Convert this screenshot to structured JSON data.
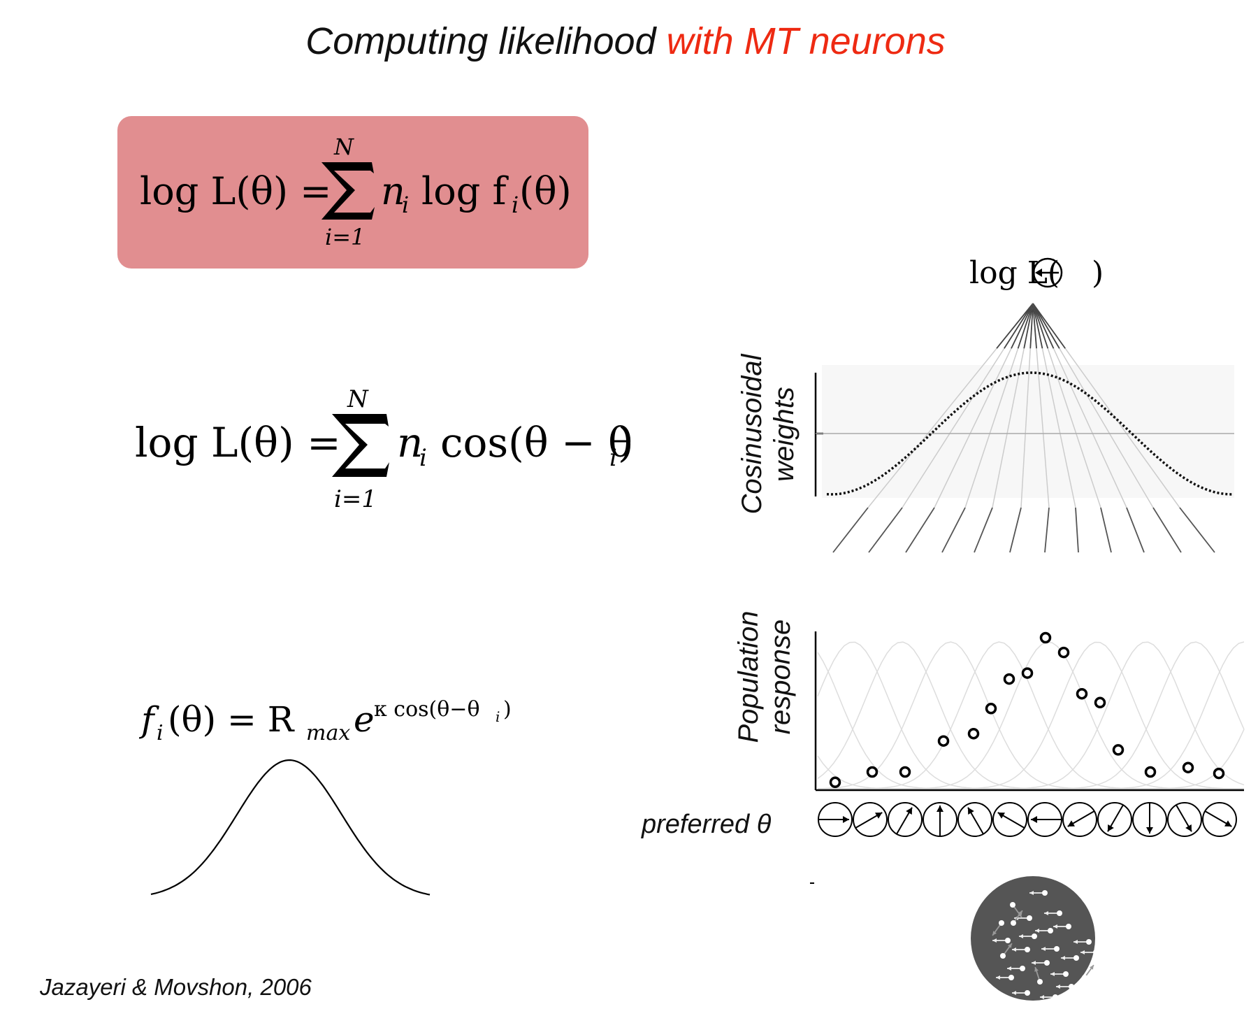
{
  "title": {
    "main": "Computing likelihood",
    "accent": "with MT neurons",
    "accent_color": "#ee2a12"
  },
  "equations": {
    "eq1": {
      "lhs": "log L(θ) =",
      "upper": "N",
      "lower": "i=1",
      "rhs": "n",
      "rhs_sub": "i",
      "rhs2": "log f",
      "rhs2_sub": "i",
      "rhs3": "(θ)",
      "box_color": "#e18e90"
    },
    "eq2": {
      "lhs": "log L(θ) =",
      "upper": "N",
      "lower": "i=1",
      "rhs": "n",
      "rhs_sub": "i",
      "rhs2": "cos(θ − θ",
      "rhs2_sub": "i",
      "rhs3": ")"
    },
    "eq3": {
      "lhs": "f",
      "lhs_sub": "i",
      "lhs2": "(θ) = R",
      "r_sub": "max",
      "e": "e",
      "exp": "κ cos(θ−θ",
      "exp_sub": "i",
      "exp_end": ")"
    }
  },
  "diagram": {
    "top_label": "log L(",
    "top_label_end": ")",
    "weights_label": [
      "Cosinusoidal",
      "weights"
    ],
    "population_label": [
      "Population",
      "response"
    ],
    "preferred_label": "preferred θ",
    "population_response": [
      0.02,
      0.09,
      0.09,
      0.3,
      0.35,
      0.52,
      0.72,
      0.76,
      1.0,
      0.9,
      0.62,
      0.56,
      0.24,
      0.09,
      0.12,
      0.08
    ],
    "preferred_directions_deg": [
      0,
      30,
      60,
      90,
      120,
      150,
      180,
      210,
      240,
      270,
      300,
      330
    ]
  },
  "citation": "Jazayeri & Movshon, 2006"
}
